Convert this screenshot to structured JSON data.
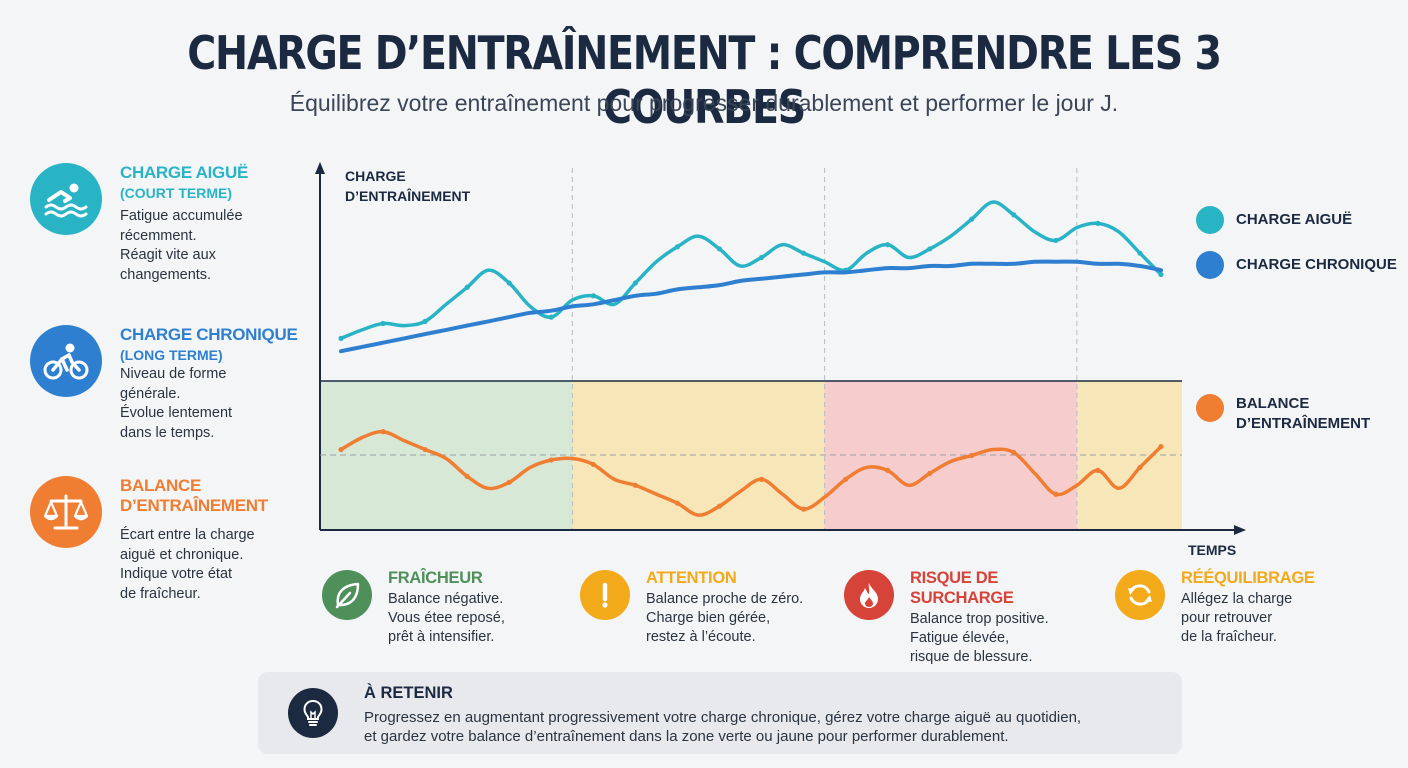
{
  "header": {
    "title": "CHARGE D’ENTRAÎNEMENT : COMPRENDRE LES 3 COURBES",
    "subtitle": "Équilibrez votre entraînement pour progresser durablement et performer le jour J."
  },
  "legend_left": [
    {
      "icon": "swimmer-icon",
      "color": "#29b4c6",
      "title": "CHARGE AIGUË",
      "subtitle": "(COURT TERME)",
      "lines": [
        "Fatigue accumulée",
        "récemment.",
        "Réagit vite aux",
        "changements."
      ]
    },
    {
      "icon": "cyclist-icon",
      "color": "#2f7fd0",
      "title": "CHARGE CHRONIQUE",
      "subtitle": "(LONG TERME)",
      "lines": [
        "Niveau de forme",
        "générale.",
        "Évolue lentement",
        "dans le temps."
      ]
    },
    {
      "icon": "balance-scale-icon",
      "color": "#ef7d32",
      "title_lines": [
        "BALANCE",
        "D’ENTRAÎNEMENT"
      ],
      "lines": [
        "Écart entre la charge",
        "aiguë et chronique.",
        "Indique votre état",
        "de fraîcheur."
      ]
    }
  ],
  "chart_data": {
    "type": "line",
    "ylabel": [
      "CHARGE",
      "D’ENTRAÎNEMENT"
    ],
    "xlabel": "TEMPS",
    "x": [
      1,
      2,
      3,
      4,
      5,
      6,
      7,
      8,
      9,
      10,
      11,
      12,
      13,
      14,
      15,
      16,
      17,
      18,
      19,
      20,
      21,
      22,
      23,
      24,
      25,
      26,
      27,
      28,
      29,
      30,
      31,
      32,
      33,
      34,
      35,
      36,
      37,
      38,
      39,
      40
    ],
    "xlim": [
      0,
      41
    ],
    "ylim": [
      0,
      100
    ],
    "series": [
      {
        "name": "CHARGE AIGUË",
        "panel": "top",
        "color": "#29b4c6",
        "values": [
          20,
          24,
          27,
          26,
          28,
          36,
          44,
          52,
          46,
          35,
          30,
          38,
          40,
          36,
          46,
          56,
          63,
          68,
          62,
          54,
          58,
          64,
          60,
          56,
          52,
          60,
          64,
          58,
          62,
          68,
          76,
          84,
          78,
          70,
          66,
          72,
          74,
          70,
          60,
          50
        ]
      },
      {
        "name": "CHARGE CHRONIQUE",
        "panel": "top",
        "color": "#2f7fd0",
        "values": [
          14,
          16,
          18,
          20,
          22,
          24,
          26,
          28,
          30,
          32,
          33,
          35,
          36,
          38,
          40,
          41,
          43,
          44,
          45,
          47,
          48,
          49,
          50,
          51,
          51,
          52,
          53,
          53,
          54,
          54,
          55,
          55,
          55,
          56,
          56,
          56,
          55,
          55,
          54,
          52
        ]
      },
      {
        "name": "BALANCE D’ENTRAÎNEMENT",
        "panel": "bottom",
        "color": "#ef7d32",
        "values": [
          54,
          62,
          66,
          60,
          54,
          48,
          36,
          28,
          32,
          42,
          47,
          48,
          44,
          34,
          30,
          24,
          18,
          10,
          16,
          26,
          34,
          24,
          14,
          22,
          34,
          42,
          40,
          30,
          38,
          46,
          50,
          54,
          52,
          38,
          24,
          30,
          40,
          28,
          42,
          56
        ]
      }
    ],
    "zones": [
      {
        "label": "FRAÎCHEUR",
        "from": 0,
        "to": 12,
        "color": "#d8e8d6"
      },
      {
        "label": "ATTENTION",
        "from": 12,
        "to": 24,
        "color": "#f7e6b8"
      },
      {
        "label": "RISQUE DE SURCHARGE",
        "from": 24,
        "to": 36,
        "color": "#f7cccd"
      },
      {
        "label": "RÉÉQUILIBRAGE",
        "from": 36,
        "to": 41,
        "color": "#f7e6b8"
      }
    ]
  },
  "series_legend": {
    "acute": {
      "label": "CHARGE AIGUË",
      "color": "#29b4c6"
    },
    "chronic": {
      "label": "CHARGE CHRONIQUE",
      "color": "#2f7fd0"
    },
    "balance": {
      "label_lines": [
        "BALANCE",
        "D’ENTRAÎNEMENT"
      ],
      "color": "#ef7d32"
    }
  },
  "zones_legend": [
    {
      "icon": "leaf-icon",
      "color": "#4e8f5a",
      "title": "FRAÎCHEUR",
      "lines": [
        "Balance négative.",
        "Vous étee reposé,",
        "prêt à intensifier."
      ]
    },
    {
      "icon": "exclamation-icon",
      "color": "#f2a91a",
      "title": "ATTENTION",
      "lines": [
        "Balance proche de zéro.",
        "Charge bien gérée,",
        "restez à l’écoute."
      ]
    },
    {
      "icon": "flame-icon",
      "color": "#d64338",
      "title": "RISQUE DE SURCHARGE",
      "lines": [
        "Balance trop positive.",
        "Fatigue élevée,",
        "risque de blessure."
      ]
    },
    {
      "icon": "refresh-icon",
      "color": "#f2a91a",
      "title": "RÉÉQUILIBRAGE",
      "lines": [
        "Allégez la charge",
        "pour retrouver",
        "de la fraîcheur."
      ]
    }
  ],
  "retain": {
    "icon": "lightbulb-icon",
    "title": "À RETENIR",
    "lines": [
      "Progressez en augmentant progressivement votre charge chronique, gérez votre charge aiguë au quotidien,",
      "et gardez votre balance d’entraînement dans la zone verte ou jaune pour performer durablement."
    ]
  }
}
